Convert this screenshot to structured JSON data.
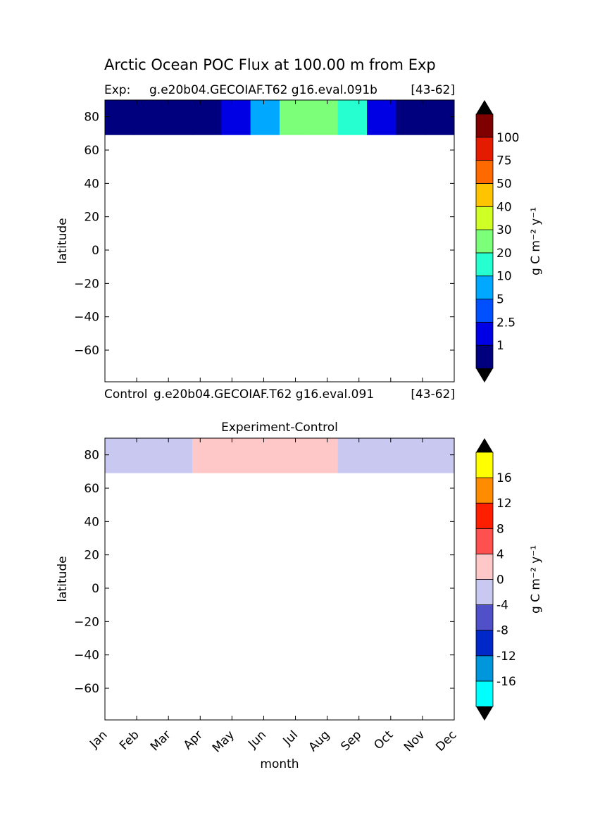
{
  "figure": {
    "title": "Arctic Ocean POC Flux at 100.00 m from Exp",
    "top_left_label": "Exp:",
    "top_case": "g.e20b04.GECOIAF.T62 g16.eval.091b",
    "top_years": "[43-62]",
    "bottom_left_label": "Control",
    "bottom_case": "g.e20b04.GECOIAF.T62 g16.eval.091",
    "bottom_years": "[43-62]",
    "diff_title": "Experiment-Control"
  },
  "chart_data": [
    {
      "type": "heatmap",
      "title": "Arctic Ocean POC Flux at 100.00 m from Exp",
      "ylabel": "latitude",
      "xlabel": "",
      "ylim": [
        -79,
        90
      ],
      "yticks": [
        80,
        60,
        40,
        20,
        0,
        -20,
        -40,
        -60
      ],
      "yticklabels": [
        "80",
        "60",
        "40",
        "20",
        "0",
        "−20",
        "−40",
        "−60"
      ],
      "x_categories": [
        "Jan",
        "Feb",
        "Mar",
        "Apr",
        "May",
        "Jun",
        "Jul",
        "Aug",
        "Sep",
        "Oct",
        "Nov",
        "Dec"
      ],
      "data_lat_range": [
        69,
        90
      ],
      "colorbar": {
        "label": "g C m⁻² y⁻¹",
        "levels": [
          1,
          2.5,
          5,
          10,
          20,
          30,
          40,
          50,
          75,
          100
        ],
        "ticklabels": [
          "1",
          "2.5",
          "5",
          "10",
          "20",
          "30",
          "40",
          "50",
          "75",
          "100"
        ],
        "colors": [
          "#00007f",
          "#0000e5",
          "#0050ff",
          "#00a9ff",
          "#26ffd0",
          "#7cff79",
          "#d0ff26",
          "#ffc400",
          "#ff6a00",
          "#e51b00",
          "#7f0000"
        ],
        "extend": "both"
      },
      "pattern_by_month": [
        "#00007f",
        "#00007f",
        "#00007f",
        "#00007f",
        "#0000e5",
        "#00a9ff",
        "#7cff79",
        "#7cff79",
        "#26ffd0",
        "#0000e5",
        "#00007f",
        "#00007f"
      ]
    },
    {
      "type": "heatmap",
      "title": "Experiment-Control",
      "ylabel": "latitude",
      "xlabel": "month",
      "ylim": [
        -79,
        90
      ],
      "yticks": [
        80,
        60,
        40,
        20,
        0,
        -20,
        -40,
        -60
      ],
      "yticklabels": [
        "80",
        "60",
        "40",
        "20",
        "0",
        "−20",
        "−40",
        "−60"
      ],
      "x_categories": [
        "Jan",
        "Feb",
        "Mar",
        "Apr",
        "May",
        "Jun",
        "Jul",
        "Aug",
        "Sep",
        "Oct",
        "Nov",
        "Dec"
      ],
      "data_lat_range": [
        69,
        90
      ],
      "colorbar": {
        "label": "g C m⁻² y⁻¹",
        "levels": [
          -16,
          -12,
          -8,
          -4,
          0,
          4,
          8,
          12,
          16
        ],
        "ticklabels": [
          "-16",
          "-12",
          "-8",
          "-4",
          "0",
          "4",
          "8",
          "12",
          "16"
        ],
        "colors": [
          "#00ffff",
          "#0096dc",
          "#0028c8",
          "#5050c8",
          "#c8c8f0",
          "#ffc8c8",
          "#ff5050",
          "#ff1e00",
          "#ff8c00",
          "#ffff00"
        ],
        "extend": "both"
      },
      "pattern_by_month": [
        "#c8c8f0",
        "#c8c8f0",
        "#c8c8f0",
        "#ffc8c8",
        "#ffc8c8",
        "#ffc8c8",
        "#ffc8c8",
        "#ffc8c8",
        "#c8c8f0",
        "#c8c8f0",
        "#c8c8f0",
        "#c8c8f0"
      ]
    }
  ]
}
